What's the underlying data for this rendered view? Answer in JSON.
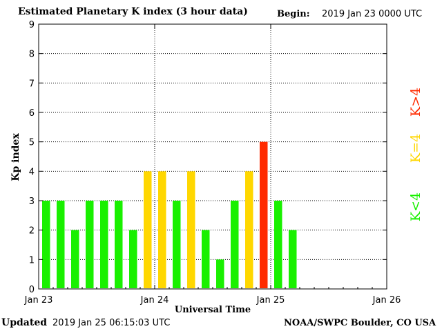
{
  "header": {
    "title": "Estimated Planetary K index (3 hour data)",
    "begin_label": "Begin:",
    "begin_value": "2019 Jan 23 0000 UTC"
  },
  "footer": {
    "updated_label": "Updated",
    "updated_value": "2019 Jan 25 06:15:03 UTC",
    "source": "NOAA/SWPC Boulder, CO USA"
  },
  "chart_data": {
    "type": "bar",
    "title": "Estimated Planetary K index (3 hour data)",
    "xlabel": "Universal Time",
    "ylabel": "Kp index",
    "ylim": [
      0,
      9
    ],
    "yticks": [
      "0",
      "1",
      "2",
      "3",
      "4",
      "5",
      "6",
      "7",
      "8",
      "9"
    ],
    "xticks": [
      "Jan 23",
      "Jan 24",
      "Jan 25",
      "Jan 26"
    ],
    "interval_hours": 3,
    "grid": true,
    "values": [
      3,
      3,
      2,
      3,
      3,
      3,
      2,
      4,
      4,
      3,
      4,
      2,
      1,
      3,
      4,
      5,
      3,
      2
    ],
    "colors": {
      "below_4": "#19f000",
      "equal_4": "#ffd700",
      "above_4": "#ff2a00"
    },
    "legend": [
      {
        "label": "K<4",
        "color": "#19f000"
      },
      {
        "label": "K=4",
        "color": "#ffd700"
      },
      {
        "label": "K>4",
        "color": "#ff2a00"
      }
    ]
  }
}
